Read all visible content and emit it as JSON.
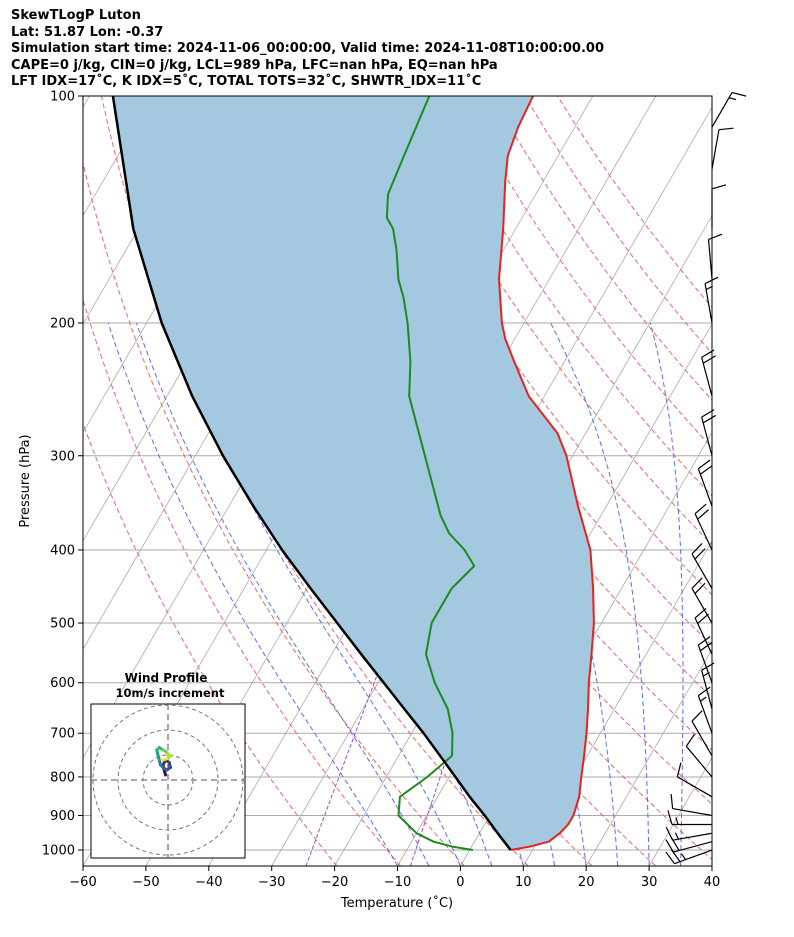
{
  "header": {
    "title": "SkewTLogP Luton",
    "location": "Lat: 51.87   Lon: -0.37",
    "times": "Simulation start time: 2024-11-06_00:00:00, Valid time: 2024-11-08T10:00:00.00",
    "params": "CAPE=0 j/kg, CIN=0 j/kg, LCL=989 hPa, LFC=nan hPa, EQ=nan hPa",
    "indices": "LFT IDX=17˚C, K IDX=5˚C, TOTAL TOTS=32˚C, SHWTR_IDX=11˚C"
  },
  "colors": {
    "temperature": "#e8211f",
    "dewpoint": "#1c8a1c",
    "parcel": "#000000",
    "shading": "#a5c8e1",
    "dry_adiabat": "#f06666",
    "moist_adiabat": "#5a6ef0",
    "mixing_ratio": "#9b4fd4",
    "isotherm": "#aaaaaa"
  },
  "chart_data": {
    "type": "line",
    "subtype": "skew-t log-p",
    "xlabel": "Temperature ($^\\circ$C)",
    "xlabel_display": "Temperature (˚C)",
    "ylabel": "Pressure (hPa)",
    "xlim": [
      -60,
      40
    ],
    "ylim": [
      1050,
      100
    ],
    "x_ticks": [
      -60,
      -50,
      -40,
      -30,
      -20,
      -10,
      0,
      10,
      20,
      30,
      40
    ],
    "x_tick_labels": [
      "−60",
      "−50",
      "−40",
      "−30",
      "−20",
      "−10",
      "0",
      "10",
      "20",
      "30",
      "40"
    ],
    "y_ticks": [
      1000,
      900,
      800,
      700,
      600,
      500,
      400,
      300,
      200,
      100
    ],
    "y_tick_labels": [
      "1000",
      "900",
      "800",
      "700",
      "600",
      "500",
      "400",
      "300",
      "200",
      "100"
    ],
    "grid": true,
    "series": [
      {
        "name": "Temperature",
        "color": "#e8211f",
        "points": [
          [
            1000,
            6.5
          ],
          [
            990,
            9.2
          ],
          [
            975,
            11.8
          ],
          [
            950,
            12.8
          ],
          [
            925,
            13.3
          ],
          [
            900,
            13.3
          ],
          [
            850,
            12.5
          ],
          [
            800,
            11.0
          ],
          [
            750,
            9.5
          ],
          [
            700,
            7.8
          ],
          [
            650,
            5.8
          ],
          [
            600,
            3.5
          ],
          [
            550,
            1.3
          ],
          [
            500,
            -1.2
          ],
          [
            450,
            -4.5
          ],
          [
            400,
            -8.5
          ],
          [
            350,
            -14.5
          ],
          [
            300,
            -21.0
          ],
          [
            280,
            -24.5
          ],
          [
            250,
            -32.5
          ],
          [
            225,
            -38.0
          ],
          [
            210,
            -41.5
          ],
          [
            200,
            -43.5
          ],
          [
            175,
            -48.0
          ],
          [
            150,
            -52.0
          ],
          [
            130,
            -56.0
          ],
          [
            120,
            -58.0
          ],
          [
            110,
            -59.0
          ],
          [
            100,
            -59.5
          ]
        ]
      },
      {
        "name": "Dewpoint",
        "color": "#1c8a1c",
        "points": [
          [
            1000,
            0.5
          ],
          [
            990,
            -3.0
          ],
          [
            975,
            -6.5
          ],
          [
            950,
            -10.0
          ],
          [
            900,
            -14.5
          ],
          [
            850,
            -16.0
          ],
          [
            800,
            -13.5
          ],
          [
            750,
            -11.5
          ],
          [
            700,
            -13.5
          ],
          [
            650,
            -16.5
          ],
          [
            600,
            -21.0
          ],
          [
            550,
            -25.0
          ],
          [
            500,
            -27.0
          ],
          [
            450,
            -27.0
          ],
          [
            420,
            -25.5
          ],
          [
            400,
            -28.5
          ],
          [
            380,
            -32.5
          ],
          [
            360,
            -35.5
          ],
          [
            300,
            -43.5
          ],
          [
            250,
            -51.5
          ],
          [
            225,
            -54.5
          ],
          [
            200,
            -58.5
          ],
          [
            185,
            -61.5
          ],
          [
            175,
            -64.0
          ],
          [
            160,
            -67.0
          ],
          [
            150,
            -69.5
          ],
          [
            145,
            -71.5
          ],
          [
            135,
            -73.5
          ],
          [
            120,
            -74.5
          ],
          [
            100,
            -76.0
          ]
        ]
      },
      {
        "name": "Parcel",
        "color": "#000000",
        "points": [
          [
            1000,
            6.5
          ],
          [
            950,
            2.9
          ],
          [
            900,
            -0.8
          ],
          [
            850,
            -4.9
          ],
          [
            800,
            -9.0
          ],
          [
            750,
            -13.4
          ],
          [
            700,
            -18.1
          ],
          [
            650,
            -23.4
          ],
          [
            600,
            -29.1
          ],
          [
            550,
            -35.3
          ],
          [
            500,
            -42.0
          ],
          [
            450,
            -49.4
          ],
          [
            400,
            -57.5
          ],
          [
            350,
            -66.1
          ],
          [
            300,
            -75.6
          ],
          [
            250,
            -86.0
          ],
          [
            200,
            -97.6
          ],
          [
            150,
            -110.8
          ],
          [
            100,
            -126.3
          ]
        ]
      }
    ],
    "shading": {
      "between": [
        "Parcel",
        "Temperature"
      ],
      "color": "#a5c8e1"
    },
    "background_lines": {
      "dry_adiabats_theta_K": [
        250,
        260,
        270,
        280,
        290,
        300,
        310,
        320,
        330,
        340,
        350,
        360,
        370,
        380,
        390,
        400,
        410,
        420
      ],
      "moist_adiabats_start_C": [
        -10,
        -5,
        0,
        5,
        10,
        15,
        20,
        25,
        30,
        35,
        40,
        45
      ],
      "mixing_ratio_g_per_kg": [
        0.5,
        2.0
      ]
    },
    "wind_barbs": [
      {
        "pressure": 1000,
        "speed_kt": 25,
        "direction_deg": 250
      },
      {
        "pressure": 975,
        "speed_kt": 20,
        "direction_deg": 255
      },
      {
        "pressure": 950,
        "speed_kt": 15,
        "direction_deg": 260
      },
      {
        "pressure": 925,
        "speed_kt": 15,
        "direction_deg": 270
      },
      {
        "pressure": 900,
        "speed_kt": 10,
        "direction_deg": 280
      },
      {
        "pressure": 850,
        "speed_kt": 10,
        "direction_deg": 300
      },
      {
        "pressure": 800,
        "speed_kt": 10,
        "direction_deg": 320
      },
      {
        "pressure": 750,
        "speed_kt": 10,
        "direction_deg": 330
      },
      {
        "pressure": 700,
        "speed_kt": 15,
        "direction_deg": 340
      },
      {
        "pressure": 650,
        "speed_kt": 15,
        "direction_deg": 345
      },
      {
        "pressure": 600,
        "speed_kt": 20,
        "direction_deg": 340
      },
      {
        "pressure": 550,
        "speed_kt": 20,
        "direction_deg": 335
      },
      {
        "pressure": 500,
        "speed_kt": 20,
        "direction_deg": 330
      },
      {
        "pressure": 450,
        "speed_kt": 20,
        "direction_deg": 330
      },
      {
        "pressure": 400,
        "speed_kt": 20,
        "direction_deg": 335
      },
      {
        "pressure": 350,
        "speed_kt": 20,
        "direction_deg": 340
      },
      {
        "pressure": 300,
        "speed_kt": 20,
        "direction_deg": 345
      },
      {
        "pressure": 250,
        "speed_kt": 20,
        "direction_deg": 345
      },
      {
        "pressure": 200,
        "speed_kt": 15,
        "direction_deg": 350
      },
      {
        "pressure": 175,
        "speed_kt": 10,
        "direction_deg": 355
      },
      {
        "pressure": 150,
        "speed_kt": 10,
        "direction_deg": 0
      },
      {
        "pressure": 125,
        "speed_kt": 10,
        "direction_deg": 10
      },
      {
        "pressure": 110,
        "speed_kt": 15,
        "direction_deg": 30
      }
    ],
    "inset": {
      "title": "Wind Profile",
      "subtitle": "10m/s increment",
      "rings_ms": [
        10,
        20,
        30
      ],
      "hodograph": [
        [
          -1,
          2
        ],
        [
          -1.5,
          4
        ],
        [
          -2,
          6
        ],
        [
          -1,
          8
        ],
        [
          0.5,
          7
        ],
        [
          1,
          5
        ],
        [
          -0.5,
          4
        ],
        [
          -2,
          5
        ],
        [
          -3,
          6
        ],
        [
          -3.5,
          8
        ],
        [
          -4,
          10
        ],
        [
          -4.5,
          12
        ],
        [
          -3.5,
          13
        ],
        [
          -2,
          12
        ],
        [
          -1,
          11.5
        ],
        [
          0,
          10.5
        ],
        [
          1,
          9.5
        ],
        [
          -0.5,
          8.5
        ],
        [
          -2,
          8
        ]
      ]
    }
  }
}
